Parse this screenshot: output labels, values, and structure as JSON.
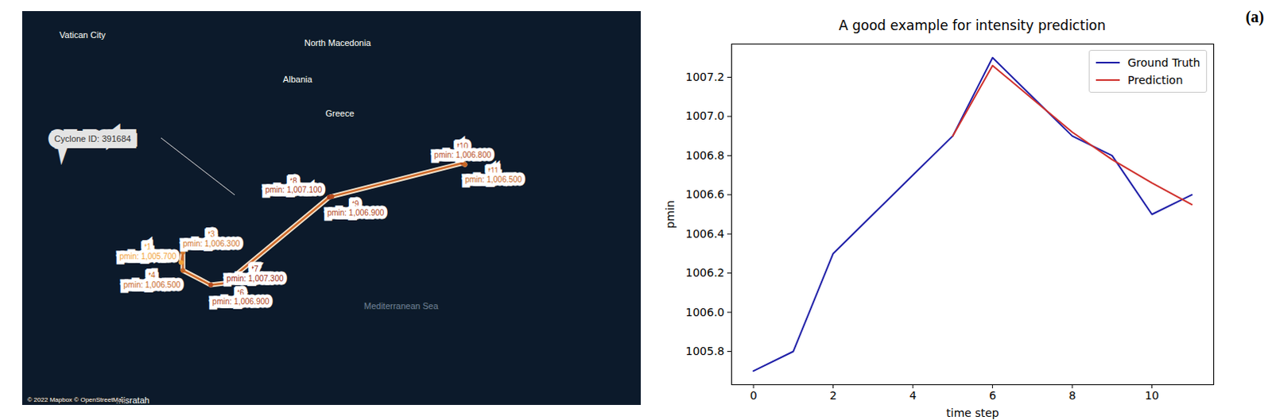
{
  "panel_label": "(a)",
  "chart_data": [
    {
      "type": "map",
      "xlim": [
        10.34,
        32.14
      ],
      "ylim": [
        31.7,
        42.56
      ],
      "tick_labels": false,
      "cyclone_id": "Cyclone ID: 391684",
      "attribution": "© 2022 Mapbox © OpenStreetMap",
      "places": [
        {
          "name": "Vatican City",
          "lon": 12.45,
          "lat": 41.9
        },
        {
          "name": "North Macedonia",
          "lon": 21.44,
          "lat": 41.68
        },
        {
          "name": "Albania",
          "lon": 20.03,
          "lat": 40.69
        },
        {
          "name": "Greece",
          "lon": 21.52,
          "lat": 39.75
        },
        {
          "name": "Mediterranean Sea",
          "lon": 23.68,
          "lat": 34.43
        },
        {
          "name": "Misratah",
          "lon": 14.22,
          "lat": 31.84
        }
      ],
      "track": {
        "labels": [
          "t1",
          "t3",
          "t4",
          "t6",
          "t7",
          "t8",
          "t9",
          "t10",
          "t11"
        ],
        "lon": [
          15.93,
          15.99,
          15.99,
          16.97,
          17.5,
          21.15,
          21.24,
          25.85,
          25.93
        ],
        "lat": [
          35.64,
          35.92,
          35.42,
          35.02,
          35.07,
          37.44,
          37.46,
          38.38,
          38.34
        ],
        "pmin": [
          1005.7,
          1006.3,
          1006.5,
          1006.9,
          1007.3,
          1007.1,
          1006.9,
          1006.8,
          1006.5
        ],
        "value_labels": [
          "pmin: 1,005.700",
          "pmin: 1,006.300",
          "pmin: 1,006.500",
          "pmin: 1,006.900",
          "pmin: 1,007.300",
          "pmin: 1,007.100",
          "pmin: 1,006.900",
          "pmin: 1,006.800",
          "pmin: 1,006.500"
        ]
      }
    },
    {
      "type": "line",
      "title": "A good example for intensity prediction",
      "xlabel": "time step",
      "ylabel": "pmin",
      "x": [
        0,
        1,
        2,
        3,
        4,
        5,
        6,
        7,
        8,
        9,
        10,
        11
      ],
      "series": [
        {
          "name": "Ground Truth",
          "color": "#1f1fa8",
          "values": [
            1005.7,
            1005.8,
            1006.3,
            1006.5,
            1006.7,
            1006.9,
            1007.3,
            1007.1,
            1006.9,
            1006.8,
            1006.5,
            1006.6
          ]
        },
        {
          "name": "Prediction",
          "color": "#d0312d",
          "values": [
            null,
            null,
            null,
            null,
            null,
            1006.9,
            1007.26,
            1007.09,
            1006.92,
            1006.78,
            1006.66,
            1006.55
          ]
        }
      ],
      "xlim": [
        -0.55,
        11.55
      ],
      "ylim": [
        1005.63,
        1007.37
      ],
      "xticks": [
        0,
        2,
        4,
        6,
        8,
        10
      ],
      "yticks": [
        1005.8,
        {
          "value": 1006,
          "label": "1006.0"
        },
        1006.2,
        1006.4,
        1006.6,
        1006.8,
        {
          "value": 1007,
          "label": "1007.0"
        },
        1007.2
      ],
      "legend": "upper right",
      "grid": false
    }
  ]
}
